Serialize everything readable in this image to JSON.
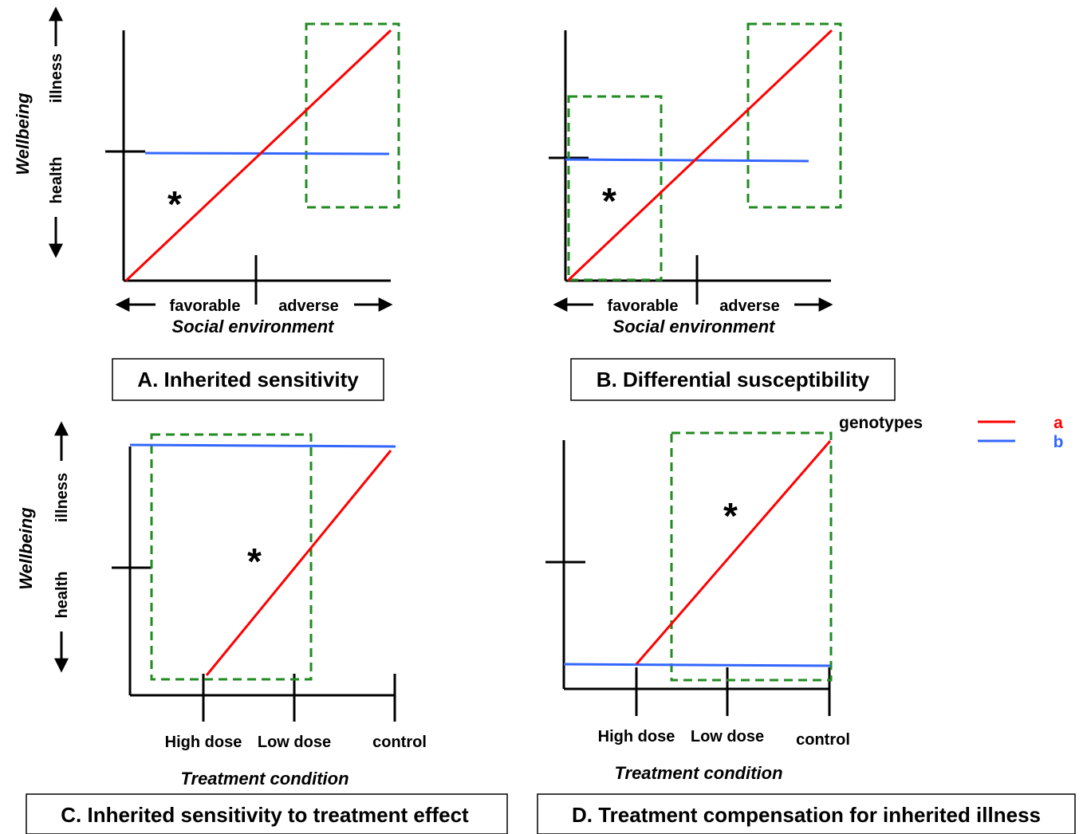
{
  "legend": {
    "title": "genotypes",
    "entries": [
      {
        "key": "a",
        "label": "a",
        "color": "#ff0000"
      },
      {
        "key": "b",
        "label": "b",
        "color": "#3366ff"
      }
    ]
  },
  "colors": {
    "genotype_a": "#ff0000",
    "genotype_b": "#3366ff",
    "highlight_box": "#228b22",
    "axes": "#000000"
  },
  "panels": {
    "A": {
      "caption": "A. Inherited sensitivity",
      "ylabel": "Wellbeing",
      "y_top": "illness",
      "y_bottom": "health",
      "x_left": "favorable",
      "x_right": "adverse",
      "xlabel": "Social environment",
      "marker": "*"
    },
    "B": {
      "caption": "B. Differential susceptibility",
      "x_left": "favorable",
      "x_right": "adverse",
      "xlabel": "Social environment",
      "marker": "*"
    },
    "C": {
      "caption": "C. Inherited sensitivity to treatment effect",
      "ylabel": "Wellbeing",
      "y_top": "illness",
      "y_bottom": "health",
      "ticks": [
        "High dose",
        "Low dose",
        "control"
      ],
      "xlabel": "Treatment condition",
      "marker": "*"
    },
    "D": {
      "caption": "D. Treatment compensation for inherited illness",
      "ticks": [
        "High dose",
        "Low dose",
        "control"
      ],
      "xlabel": "Treatment condition",
      "marker": "*"
    }
  }
}
